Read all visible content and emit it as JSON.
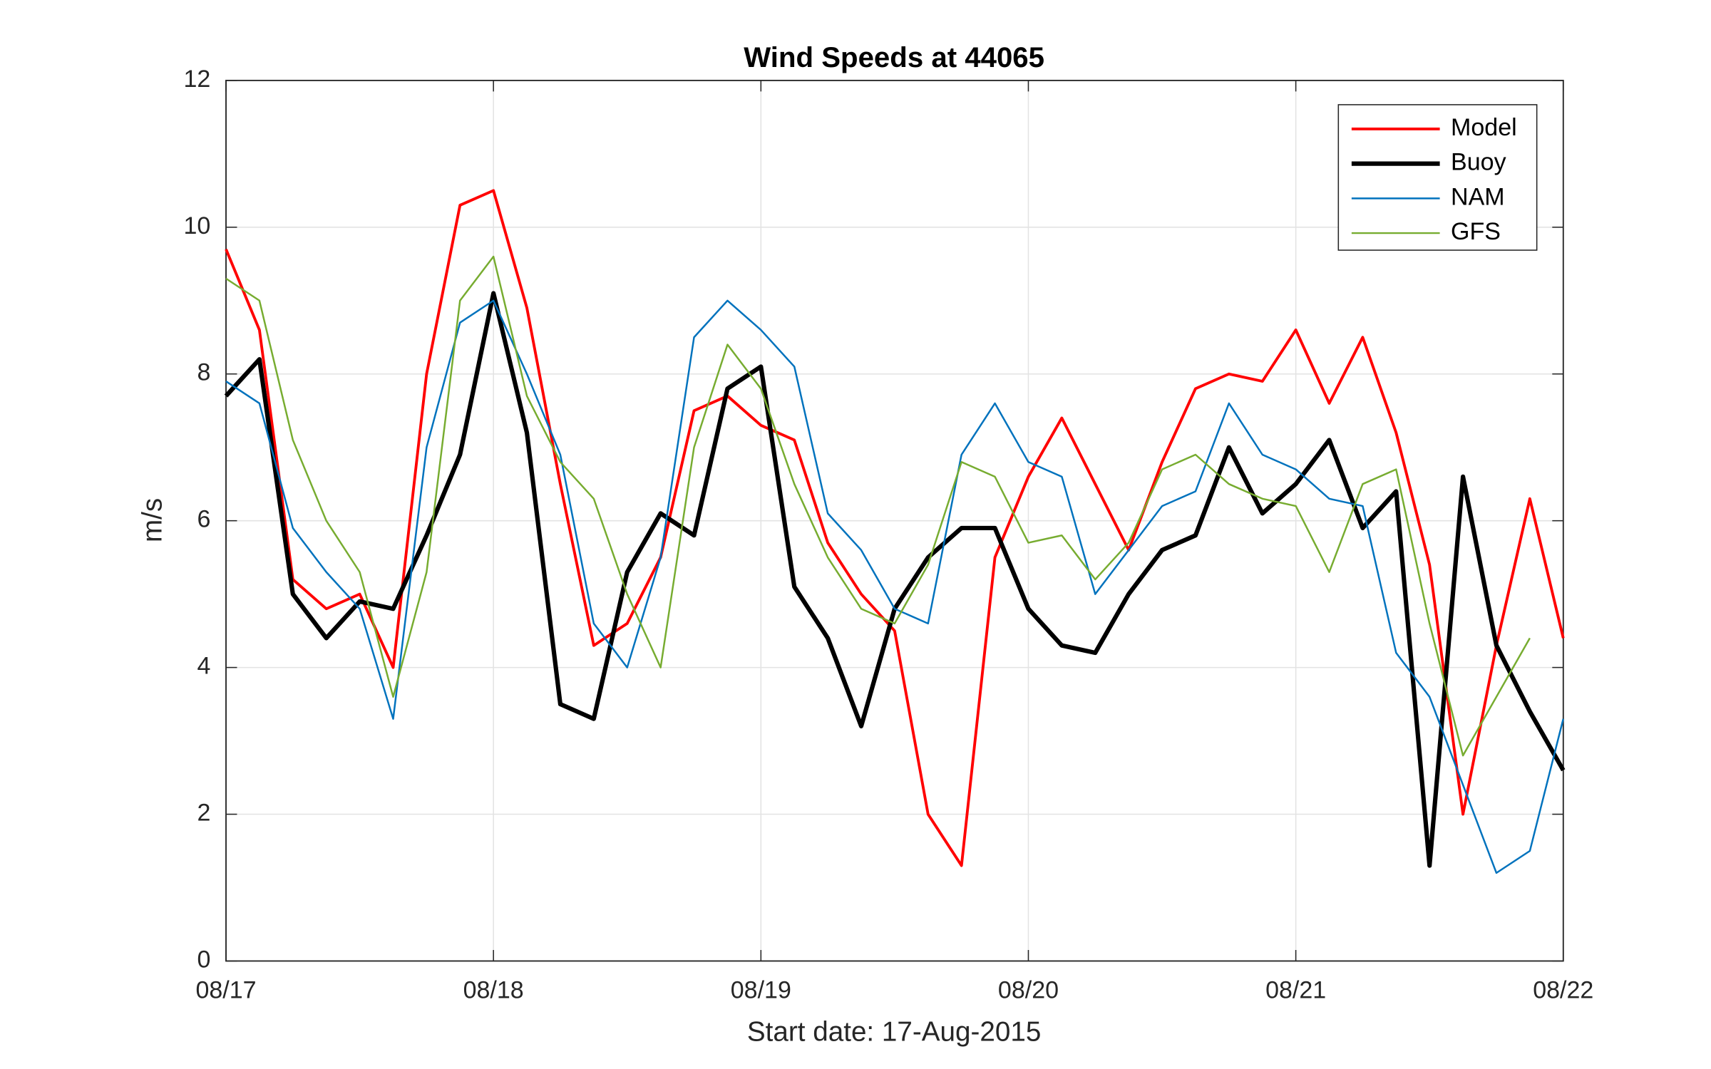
{
  "chart_data": {
    "type": "line",
    "title": "Wind Speeds at 44065",
    "ylabel": "m/s",
    "xlabel": "Start date: 17-Aug-2015",
    "x": [
      0,
      3,
      6,
      9,
      12,
      15,
      18,
      21,
      24,
      27,
      30,
      33,
      36,
      39,
      42,
      45,
      48,
      51,
      54,
      57,
      60,
      63,
      66,
      69,
      72,
      75,
      78,
      81,
      84,
      87,
      90,
      93,
      96,
      99,
      102,
      105,
      108,
      111,
      114,
      117,
      120
    ],
    "xlim": [
      0,
      120
    ],
    "xticks": [
      {
        "value": 0,
        "label": "08/17"
      },
      {
        "value": 24,
        "label": "08/18"
      },
      {
        "value": 48,
        "label": "08/19"
      },
      {
        "value": 72,
        "label": "08/20"
      },
      {
        "value": 96,
        "label": "08/21"
      },
      {
        "value": 120,
        "label": "08/22"
      }
    ],
    "ylim": [
      0,
      12
    ],
    "yticks": [
      0,
      2,
      4,
      6,
      8,
      10,
      12
    ],
    "grid": true,
    "legend": "top-right",
    "series": [
      {
        "name": "Model",
        "color": "#ff0000",
        "line_width": 2.5,
        "values": [
          9.7,
          8.6,
          5.2,
          4.8,
          5.0,
          4.0,
          8.0,
          10.3,
          10.5,
          8.9,
          6.5,
          4.3,
          4.6,
          5.5,
          7.5,
          7.7,
          7.3,
          7.1,
          5.7,
          5.0,
          4.5,
          2.0,
          1.3,
          5.5,
          6.6,
          7.4,
          6.5,
          5.6,
          6.8,
          7.8,
          8.0,
          7.9,
          8.6,
          7.6,
          8.5,
          7.2,
          5.4,
          2.0,
          4.3,
          6.3,
          4.4
        ]
      },
      {
        "name": "Buoy",
        "color": "#000000",
        "line_width": 4,
        "values": [
          7.7,
          8.2,
          5.0,
          4.4,
          4.9,
          4.8,
          5.8,
          6.9,
          9.1,
          7.2,
          3.5,
          3.3,
          5.3,
          6.1,
          5.8,
          7.8,
          8.1,
          5.1,
          4.4,
          3.2,
          4.8,
          5.5,
          5.9,
          5.9,
          4.8,
          4.3,
          4.2,
          5.0,
          5.6,
          5.8,
          7.0,
          6.1,
          6.5,
          7.1,
          5.9,
          6.4,
          1.3,
          6.6,
          4.3,
          3.4,
          2.6
        ]
      },
      {
        "name": "NAM",
        "color": "#0072bd",
        "line_width": 1.6,
        "values": [
          7.9,
          7.6,
          5.9,
          5.3,
          4.8,
          3.3,
          7.0,
          8.7,
          9.0,
          8.0,
          6.9,
          4.6,
          4.0,
          5.5,
          8.5,
          9.0,
          8.6,
          8.1,
          6.1,
          5.6,
          4.8,
          4.6,
          6.9,
          7.6,
          6.8,
          6.6,
          5.0,
          5.6,
          6.2,
          6.4,
          7.6,
          6.9,
          6.7,
          6.3,
          6.2,
          4.2,
          3.6,
          2.4,
          1.2,
          1.5,
          3.3
        ]
      },
      {
        "name": "GFS",
        "color": "#77ac30",
        "line_width": 1.6,
        "values": [
          9.3,
          9.0,
          7.1,
          6.0,
          5.3,
          3.6,
          5.3,
          9.0,
          9.6,
          7.7,
          6.8,
          6.3,
          5.0,
          4.0,
          7.0,
          8.4,
          7.8,
          6.5,
          5.5,
          4.8,
          4.6,
          5.4,
          6.8,
          6.6,
          5.7,
          5.8,
          5.2,
          5.7,
          6.7,
          6.9,
          6.5,
          6.3,
          6.2,
          5.3,
          6.5,
          6.7,
          4.6,
          2.8,
          3.6,
          4.4,
          null
        ]
      }
    ]
  }
}
